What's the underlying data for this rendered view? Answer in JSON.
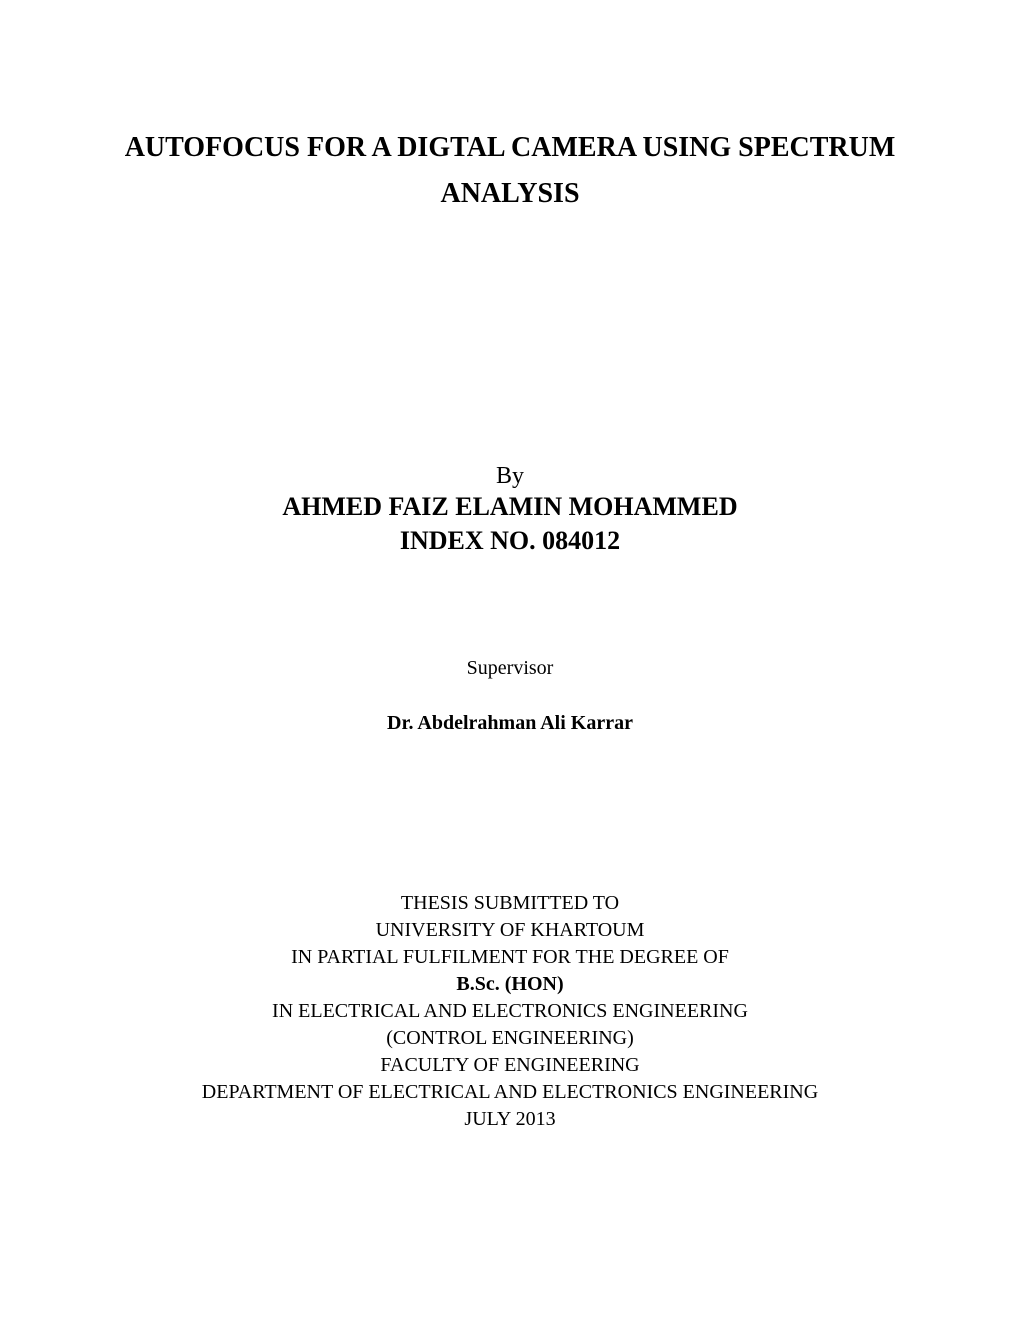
{
  "title_line1": "AUTOFOCUS FOR A DIGTAL CAMERA USING SPECTRUM",
  "title_line2": "ANALYSIS",
  "by_label": "By",
  "author_name": "AHMED FAIZ ELAMIN MOHAMMED",
  "index_no": "INDEX NO. 084012",
  "supervisor_label": "Supervisor",
  "supervisor_name": "Dr. Abdelrahman Ali Karrar",
  "submission": {
    "line1": "THESIS SUBMITTED TO",
    "line2": "UNIVERSITY OF KHARTOUM",
    "line3": "IN PARTIAL FULFILMENT FOR THE DEGREE OF",
    "degree": "B.Sc. (HON)",
    "line5": "IN ELECTRICAL AND ELECTRONICS ENGINEERING",
    "line6": "(CONTROL ENGINEERING)",
    "line7": "FACULTY OF ENGINEERING",
    "line8": "DEPARTMENT OF ELECTRICAL AND ELECTRONICS ENGINEERING",
    "line9": "JULY 2013"
  },
  "colors": {
    "background": "#ffffff",
    "text": "#000000"
  },
  "typography": {
    "font_family": "Times New Roman",
    "title_fontsize": 28,
    "author_fontsize": 26,
    "by_fontsize": 24,
    "supervisor_fontsize": 20,
    "body_fontsize": 20
  }
}
